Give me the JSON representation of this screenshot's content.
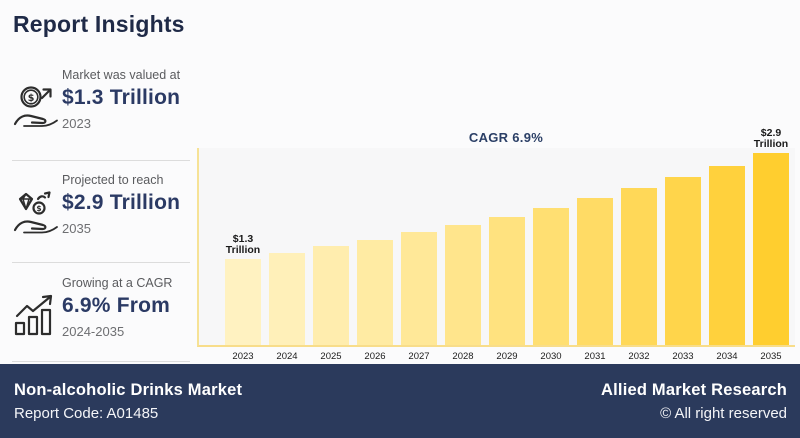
{
  "page": {
    "title": "Report Insights"
  },
  "sidebar": {
    "items": [
      {
        "icon": "money-growth-icon",
        "caption": "Market was valued at",
        "value": "$1.3 Trillion",
        "period": "2023"
      },
      {
        "icon": "projection-icon",
        "caption": "Projected to reach",
        "value": "$2.9 Trillion",
        "period": "2035"
      },
      {
        "icon": "cagr-icon",
        "caption": "Growing at a CAGR",
        "value": "6.9% From",
        "period": "2024-2035"
      }
    ]
  },
  "chart_data": {
    "type": "bar",
    "title": "",
    "categories": [
      2023,
      2024,
      2025,
      2026,
      2027,
      2028,
      2029,
      2030,
      2031,
      2032,
      2033,
      2034,
      2035
    ],
    "values": [
      1.3,
      1.39,
      1.49,
      1.59,
      1.7,
      1.81,
      1.94,
      2.07,
      2.22,
      2.37,
      2.53,
      2.71,
      2.9
    ],
    "unit": "USD Trillion",
    "xlabel": "",
    "ylabel": "",
    "ylim": [
      0,
      2.9
    ],
    "grid": false,
    "legend": false,
    "cagr_annotation": "CAGR 6.9%",
    "annotations": [
      {
        "year": 2023,
        "lines": [
          "$1.3",
          "Trillion"
        ]
      },
      {
        "year": 2035,
        "lines": [
          "$2.9",
          "Trillion"
        ]
      }
    ],
    "bar_color_start": "#FFF2C1",
    "bar_color_end": "#FFCE2F",
    "axis_color": "#F6E296",
    "plot_background": "#F7F7F8"
  },
  "footer": {
    "market_name": "Non-alcoholic Drinks Market",
    "report_code": "Report Code: A01485",
    "company": "Allied Market Research",
    "copyright": "© All right reserved",
    "bg_color": "#2B3A5C"
  }
}
